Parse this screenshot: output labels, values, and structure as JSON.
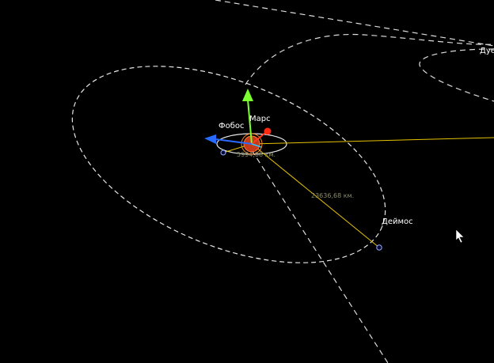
{
  "scene": {
    "labels": {
      "planet": "Марс",
      "moon_inner": "Фобос",
      "moon_outer": "Деймос",
      "offscreen": "Дуе"
    },
    "distances": {
      "inner": "5994,08 км.",
      "outer": "23636,68 км."
    },
    "colors": {
      "background": "#000000",
      "orbit": "#ffffff",
      "measure_line": "#e6c200",
      "gizmo_x": "#ff3b1f",
      "gizmo_y": "#7cff2e",
      "gizmo_z": "#2a6bff",
      "planet": "#c43a1a"
    },
    "icons": {
      "cursor": "arrow-cursor-icon",
      "gizmo": "transform-gizmo-icon"
    }
  }
}
